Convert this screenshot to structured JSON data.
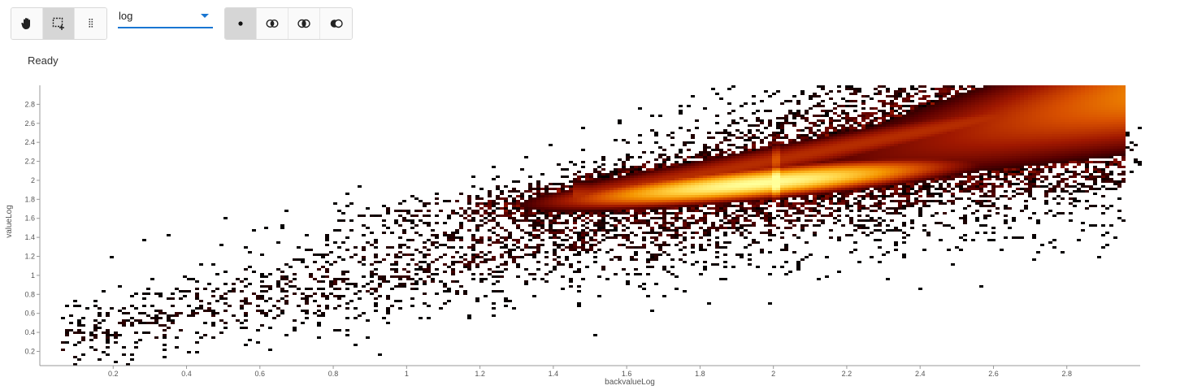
{
  "toolbar": {
    "tools": [
      {
        "name": "pan-tool",
        "icon": "hand-icon",
        "active": false
      },
      {
        "name": "select-rect-tool",
        "icon": "rect-select-icon",
        "active": true
      },
      {
        "name": "drag-handle-tool",
        "icon": "drag-dots-icon",
        "active": false
      }
    ],
    "scale_select": {
      "value": "log",
      "accent": "#1976d2"
    },
    "modes": [
      {
        "name": "mode-single",
        "icon": "dot-icon",
        "active": true
      },
      {
        "name": "mode-union",
        "icon": "union-circles-icon",
        "active": false
      },
      {
        "name": "mode-intersect",
        "icon": "intersect-circles-icon",
        "active": false
      },
      {
        "name": "mode-subtract",
        "icon": "subtract-circles-icon",
        "active": false
      }
    ]
  },
  "status": {
    "text": "Ready"
  },
  "chart_data": {
    "type": "heatmap",
    "title": "",
    "xlabel": "backvalueLog",
    "ylabel": "valueLog",
    "xlim": [
      0,
      3.0
    ],
    "ylim": [
      0.05,
      3.0
    ],
    "xticks": [
      "0.2",
      "0.4",
      "0.6",
      "0.8",
      "1",
      "1.2",
      "1.4",
      "1.6",
      "1.8",
      "2",
      "2.2",
      "2.4",
      "2.6",
      "2.8"
    ],
    "yticks": [
      "0.2",
      "0.4",
      "0.6",
      "0.8",
      "1",
      "1.2",
      "1.4",
      "1.6",
      "1.8",
      "2",
      "2.2",
      "2.4",
      "2.6",
      "2.8"
    ],
    "colormap": [
      "#000000",
      "#5a0000",
      "#a01800",
      "#d85000",
      "#f59500",
      "#ffd040",
      "#ffff9a"
    ],
    "density_model": {
      "core": {
        "center_x": 1.95,
        "center_y": 1.98,
        "slope": 0.35,
        "spread_x": 0.45,
        "spread_y": 0.13
      },
      "tail": {
        "from_x": 0.05,
        "to_x": 2.95,
        "y_at_start": 0.3,
        "y_at_end": 2.9
      }
    },
    "grid": false
  }
}
